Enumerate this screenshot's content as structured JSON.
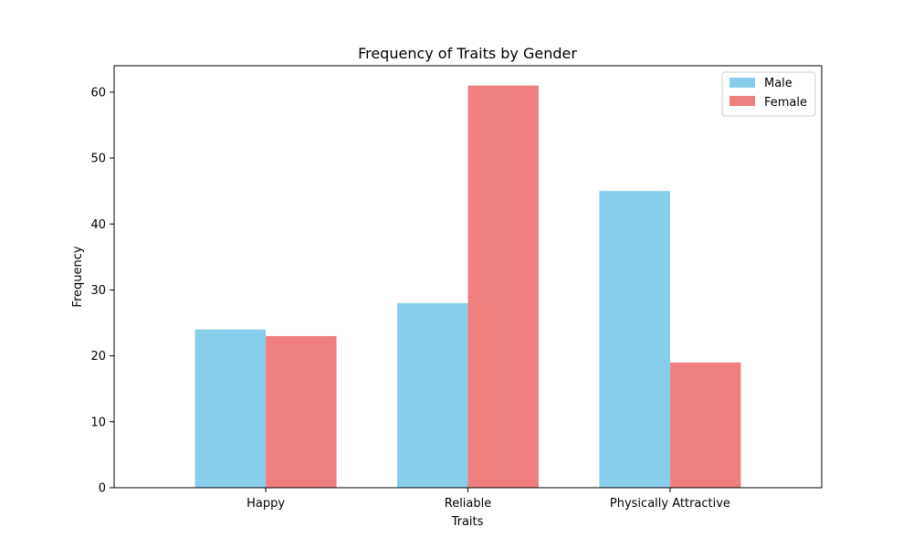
{
  "chart_data": {
    "type": "bar",
    "title": "Frequency of Traits by Gender",
    "xlabel": "Traits",
    "ylabel": "Frequency",
    "categories": [
      "Happy",
      "Reliable",
      "Physically Attractive"
    ],
    "series": [
      {
        "name": "Male",
        "values": [
          24,
          28,
          45
        ],
        "color": "#87ceeb"
      },
      {
        "name": "Female",
        "values": [
          23,
          61,
          19
        ],
        "color": "#f08080"
      }
    ],
    "ylim": [
      0,
      64
    ],
    "yticks": [
      0,
      10,
      20,
      30,
      40,
      50,
      60
    ],
    "grid": false,
    "legend_position": "top-right"
  }
}
